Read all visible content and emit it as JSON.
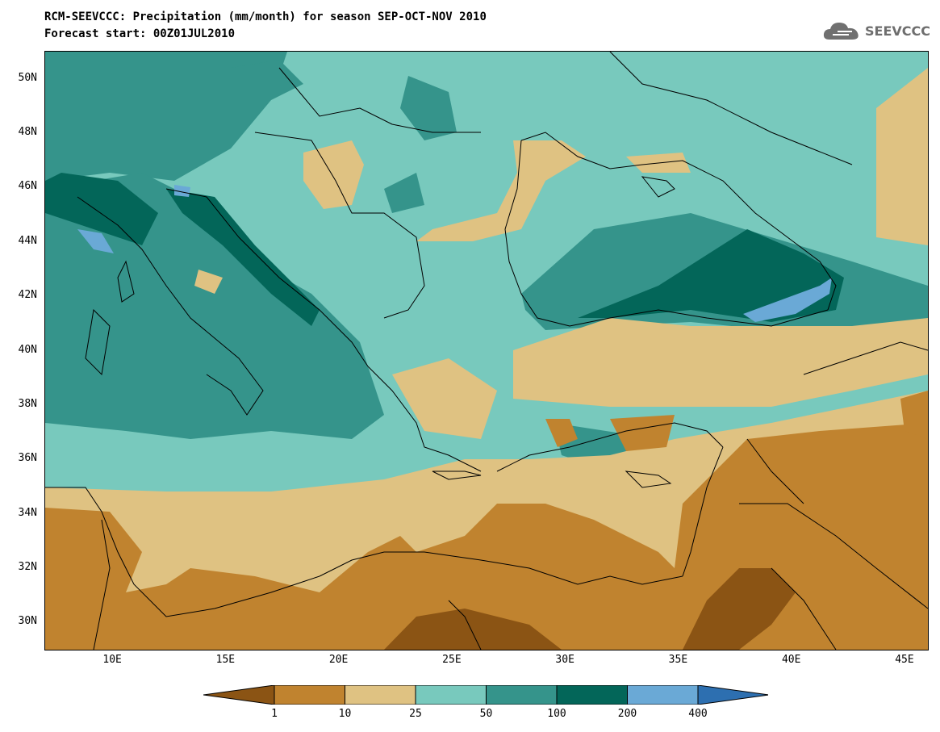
{
  "title_line1": "RCM-SEEVCCC: Precipitation (mm/month) for season SEP-OCT-NOV 2010",
  "title_line2": "Forecast start: 00Z01JUL2010",
  "logo_text": "SEEVCCC",
  "map": {
    "lon_range": [
      7,
      46
    ],
    "lat_range": [
      29,
      51
    ],
    "lat_ticks": [
      {
        "value": 50,
        "label": "50N"
      },
      {
        "value": 48,
        "label": "48N"
      },
      {
        "value": 46,
        "label": "46N"
      },
      {
        "value": 44,
        "label": "44N"
      },
      {
        "value": 42,
        "label": "42N"
      },
      {
        "value": 40,
        "label": "40N"
      },
      {
        "value": 38,
        "label": "38N"
      },
      {
        "value": 36,
        "label": "36N"
      },
      {
        "value": 34,
        "label": "34N"
      },
      {
        "value": 32,
        "label": "32N"
      },
      {
        "value": 30,
        "label": "30N"
      }
    ],
    "lon_ticks": [
      {
        "value": 10,
        "label": "10E"
      },
      {
        "value": 15,
        "label": "15E"
      },
      {
        "value": 20,
        "label": "20E"
      },
      {
        "value": 25,
        "label": "25E"
      },
      {
        "value": 30,
        "label": "30E"
      },
      {
        "value": 35,
        "label": "35E"
      },
      {
        "value": 40,
        "label": "40E"
      },
      {
        "value": 45,
        "label": "45E"
      }
    ]
  },
  "legend": {
    "levels": [
      "1",
      "10",
      "25",
      "50",
      "100",
      "200",
      "400"
    ],
    "colors": [
      "#8b5414",
      "#c0832f",
      "#dfc282",
      "#78c9bd",
      "#35948b",
      "#036659",
      "#6aa9d6",
      "#2d6fb0"
    ]
  }
}
